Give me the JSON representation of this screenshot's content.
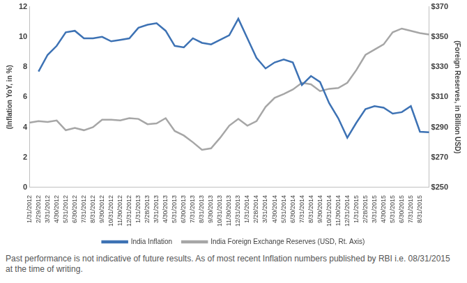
{
  "chart_data": {
    "type": "line",
    "note": "Past performance is not indicative of future results.  As of most recent Inflation numbers published by RBI i.e. 08/31/2015 at the time of writing.",
    "y_label": "(Inflation YoY, in %)",
    "y2_label": "(Foreign Reserves, in Billion USD)",
    "categories": [
      "1/31/2012",
      "2/29/2012",
      "3/31/2012",
      "4/30/2012",
      "5/31/2012",
      "6/30/2012",
      "7/31/2012",
      "8/31/2012",
      "9/30/2012",
      "10/31/2012",
      "11/30/2012",
      "12/31/2012",
      "1/31/2013",
      "2/28/2013",
      "3/31/2013",
      "4/30/2013",
      "5/31/2013",
      "6/30/2013",
      "7/31/2013",
      "8/31/2013",
      "9/30/2013",
      "10/31/2013",
      "11/30/2013",
      "12/31/2013",
      "1/31/2014",
      "2/28/2014",
      "3/31/2014",
      "4/30/2014",
      "5/31/2014",
      "6/30/2014",
      "7/31/2014",
      "8/31/2014",
      "9/30/2014",
      "10/31/2014",
      "11/30/2014",
      "12/31/2014",
      "1/31/2015",
      "2/28/2015",
      "3/31/2015",
      "4/30/2015",
      "5/31/2015",
      "6/30/2015",
      "7/31/2015",
      "8/31/2015",
      null
    ],
    "series": [
      {
        "name": "India Inflation",
        "color": "#3d72b4",
        "axis": "y",
        "values": [
          null,
          7.7,
          8.8,
          9.4,
          10.3,
          10.4,
          9.9,
          9.9,
          10.0,
          9.7,
          9.8,
          9.9,
          10.6,
          10.8,
          10.9,
          10.4,
          9.4,
          9.3,
          9.9,
          9.6,
          9.5,
          9.8,
          10.1,
          11.2,
          9.9,
          8.6,
          7.9,
          8.3,
          8.5,
          8.3,
          6.8,
          7.4,
          7.0,
          5.6,
          4.6,
          3.3,
          4.3,
          5.2,
          5.4,
          5.3,
          4.9,
          5.0,
          5.4,
          3.7,
          3.66
        ]
      },
      {
        "name": "India Foreign Exchange Reserves (USD, Rt. Axis)",
        "color": "#a6a6a6",
        "axis": "y2",
        "values": [
          293,
          294,
          293.5,
          294.5,
          288,
          289.5,
          288,
          290,
          295,
          295,
          294.5,
          296,
          295.5,
          292,
          292.5,
          296,
          287.5,
          284.5,
          280,
          275,
          276,
          283,
          291,
          295.5,
          291,
          294,
          303.5,
          309.5,
          312,
          315,
          319.5,
          318.5,
          314,
          315.5,
          316,
          319.5,
          328,
          338,
          341.5,
          345,
          353,
          355.5,
          354,
          352.5,
          351.5
        ]
      }
    ],
    "ylim": [
      0,
      12
    ],
    "yticks": [
      0,
      2,
      4,
      6,
      8,
      10,
      12
    ],
    "y2lim": [
      250,
      370
    ],
    "y2ticks": [
      {
        "value": 250,
        "label": "$250"
      },
      {
        "value": 270,
        "label": "$270"
      },
      {
        "value": 290,
        "label": "$290"
      },
      {
        "value": 310,
        "label": "$310"
      },
      {
        "value": 330,
        "label": "$330"
      },
      {
        "value": 350,
        "label": "$350"
      },
      {
        "value": 370,
        "label": "$370"
      }
    ],
    "grid": false,
    "legend": "bottom"
  }
}
